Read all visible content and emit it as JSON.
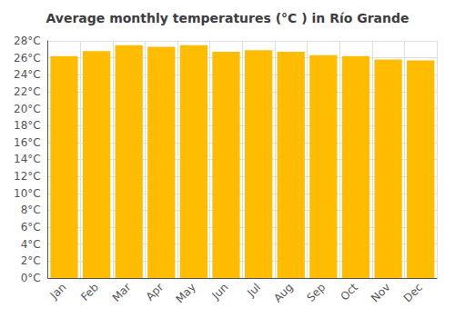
{
  "chart_data": {
    "type": "bar",
    "title": "Average monthly temperatures (°C ) in Río Grande",
    "categories": [
      "Jan",
      "Feb",
      "Mar",
      "Apr",
      "May",
      "Jun",
      "Jul",
      "Aug",
      "Sep",
      "Oct",
      "Nov",
      "Dec"
    ],
    "values": [
      26.2,
      26.8,
      27.5,
      27.3,
      27.5,
      26.7,
      26.9,
      26.7,
      26.3,
      26.2,
      25.8,
      25.7
    ],
    "color": "#FFBC00",
    "ylim": [
      0,
      28
    ],
    "yticks": [
      {
        "value": 0,
        "label": "0°C"
      },
      {
        "value": 2,
        "label": "2°C"
      },
      {
        "value": 4,
        "label": "4°C"
      },
      {
        "value": 6,
        "label": "6°C"
      },
      {
        "value": 8,
        "label": "8°C"
      },
      {
        "value": 10,
        "label": "10°C"
      },
      {
        "value": 12,
        "label": "12°C"
      },
      {
        "value": 14,
        "label": "14°C"
      },
      {
        "value": 16,
        "label": "16°C"
      },
      {
        "value": 18,
        "label": "18°C"
      },
      {
        "value": 20,
        "label": "20°C"
      },
      {
        "value": 22,
        "label": "22°C"
      },
      {
        "value": 24,
        "label": "24°C"
      },
      {
        "value": 26,
        "label": "26°C"
      },
      {
        "value": 28,
        "label": "28°C"
      }
    ],
    "grid": true
  }
}
